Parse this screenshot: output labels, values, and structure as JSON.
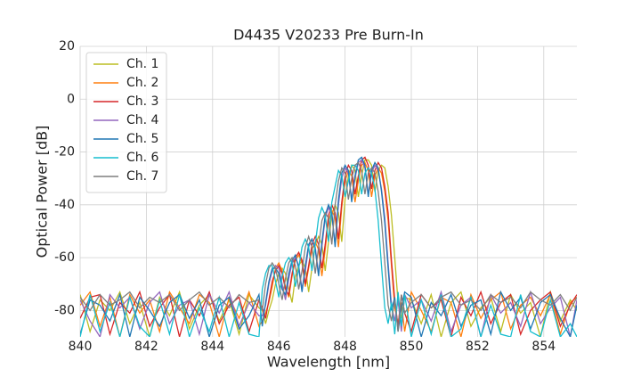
{
  "chart_data": {
    "type": "line",
    "title": "D4435 V20233 Pre Burn-In",
    "x_label": "Wavelength [nm]",
    "y_label": "Optical Power [dB]",
    "xlim": [
      840,
      855
    ],
    "ylim": [
      -90,
      20
    ],
    "xticks": [
      840,
      842,
      844,
      846,
      848,
      850,
      852,
      854
    ],
    "yticks": [
      20,
      0,
      -20,
      -40,
      -60,
      -80
    ],
    "grid": true,
    "legend": "upper-left",
    "x": [
      840,
      840.3,
      840.6,
      840.9,
      841.2,
      841.5,
      841.8,
      842.1,
      842.4,
      842.7,
      843,
      843.3,
      843.6,
      843.9,
      844.2,
      844.5,
      844.8,
      845.1,
      845.4,
      845.5,
      845.6,
      845.7,
      845.8,
      845.9,
      846,
      846.1,
      846.2,
      846.3,
      846.4,
      846.5,
      846.6,
      846.7,
      846.8,
      846.9,
      847,
      847.1,
      847.2,
      847.3,
      847.4,
      847.5,
      847.6,
      847.7,
      847.8,
      847.9,
      848,
      848.1,
      848.2,
      848.3,
      848.4,
      848.5,
      848.6,
      848.7,
      848.8,
      848.9,
      849,
      849.1,
      849.2,
      849.3,
      849.4,
      849.5,
      849.6,
      849.7,
      849.8,
      850,
      850.3,
      850.6,
      850.9,
      851.2,
      851.5,
      851.8,
      852.1,
      852.4,
      852.7,
      853,
      853.3,
      853.6,
      853.9,
      854.2,
      854.5,
      854.8,
      855
    ],
    "series": [
      {
        "name": "Ch. 1",
        "color": "#bcbd22",
        "values": [
          -74,
          -88,
          -76,
          -80,
          -73,
          -85,
          -77,
          -90,
          -75,
          -82,
          -73,
          -87,
          -78,
          -74,
          -84,
          -76,
          -89,
          -74,
          -79,
          -80,
          -85,
          -80,
          -76,
          -70,
          -66,
          -64,
          -66,
          -72,
          -77,
          -67,
          -63,
          -61,
          -64,
          -73,
          -64,
          -55,
          -52,
          -55,
          -65,
          -54,
          -44,
          -40,
          -43,
          -54,
          -38,
          -29,
          -25,
          -27,
          -37,
          -29,
          -23,
          -23,
          -25,
          -35,
          -27,
          -25,
          -26,
          -33,
          -44,
          -60,
          -77,
          -83,
          -75,
          -76,
          -85,
          -74,
          -90,
          -77,
          -73,
          -86,
          -79,
          -75,
          -88,
          -74,
          -81,
          -77,
          -90,
          -73,
          -84,
          -76,
          -80
        ]
      },
      {
        "name": "Ch. 2",
        "color": "#ff7f0e",
        "values": [
          -78,
          -73,
          -86,
          -75,
          -90,
          -74,
          -81,
          -76,
          -88,
          -73,
          -79,
          -85,
          -74,
          -77,
          -90,
          -75,
          -83,
          -73,
          -86,
          -84,
          -81,
          -77,
          -71,
          -64,
          -62,
          -65,
          -71,
          -75,
          -67,
          -61,
          -59,
          -62,
          -71,
          -64,
          -57,
          -54,
          -57,
          -67,
          -57,
          -46,
          -42,
          -45,
          -56,
          -41,
          -31,
          -27,
          -29,
          -39,
          -31,
          -25,
          -24,
          -27,
          -37,
          -29,
          -26,
          -28,
          -35,
          -46,
          -63,
          -79,
          -85,
          -77,
          -88,
          -73,
          -80,
          -88,
          -75,
          -77,
          -90,
          -74,
          -83,
          -76,
          -73,
          -87,
          -78,
          -75,
          -82,
          -74,
          -89,
          -77,
          -75
        ]
      },
      {
        "name": "Ch. 3",
        "color": "#d62728",
        "values": [
          -83,
          -75,
          -74,
          -89,
          -77,
          -81,
          -73,
          -86,
          -79,
          -74,
          -90,
          -76,
          -82,
          -73,
          -85,
          -78,
          -75,
          -88,
          -76,
          -79,
          -83,
          -76,
          -69,
          -65,
          -63,
          -66,
          -72,
          -74,
          -66,
          -60,
          -58,
          -61,
          -70,
          -63,
          -55,
          -52,
          -55,
          -64,
          -55,
          -44,
          -40,
          -43,
          -53,
          -39,
          -29,
          -25,
          -27,
          -36,
          -29,
          -23,
          -22,
          -25,
          -34,
          -27,
          -24,
          -26,
          -33,
          -43,
          -61,
          -76,
          -86,
          -74,
          -81,
          -88,
          -74,
          -79,
          -76,
          -90,
          -75,
          -82,
          -73,
          -85,
          -77,
          -74,
          -89,
          -80,
          -76,
          -73,
          -86,
          -78,
          -74
        ]
      },
      {
        "name": "Ch. 4",
        "color": "#9467bd",
        "values": [
          -76,
          -84,
          -90,
          -74,
          -79,
          -75,
          -87,
          -77,
          -73,
          -85,
          -78,
          -76,
          -89,
          -74,
          -81,
          -73,
          -86,
          -77,
          -82,
          -82,
          -78,
          -70,
          -65,
          -63,
          -64,
          -70,
          -76,
          -68,
          -62,
          -60,
          -63,
          -72,
          -65,
          -56,
          -53,
          -56,
          -66,
          -56,
          -45,
          -41,
          -44,
          -55,
          -40,
          -30,
          -26,
          -28,
          -38,
          -30,
          -24,
          -23,
          -26,
          -36,
          -28,
          -25,
          -27,
          -34,
          -45,
          -62,
          -78,
          -84,
          -76,
          -88,
          -74,
          -79,
          -76,
          -84,
          -73,
          -88,
          -78,
          -75,
          -90,
          -74,
          -81,
          -77,
          -86,
          -73,
          -85,
          -79,
          -75,
          -90,
          -76
        ]
      },
      {
        "name": "Ch. 5",
        "color": "#1f77b4",
        "values": [
          -89,
          -76,
          -78,
          -84,
          -74,
          -90,
          -75,
          -80,
          -86,
          -77,
          -74,
          -83,
          -76,
          -90,
          -78,
          -75,
          -87,
          -82,
          -74,
          -86,
          -77,
          -69,
          -64,
          -64,
          -66,
          -72,
          -74,
          -66,
          -61,
          -59,
          -64,
          -73,
          -63,
          -55,
          -53,
          -57,
          -67,
          -54,
          -44,
          -40,
          -43,
          -56,
          -38,
          -28,
          -25,
          -27,
          -39,
          -29,
          -23,
          -22,
          -25,
          -37,
          -27,
          -24,
          -26,
          -35,
          -47,
          -64,
          -80,
          -75,
          -88,
          -79,
          -73,
          -75,
          -90,
          -77,
          -82,
          -74,
          -86,
          -78,
          -76,
          -89,
          -73,
          -80,
          -75,
          -87,
          -77,
          -74,
          -83,
          -90,
          -78
        ]
      },
      {
        "name": "Ch. 6",
        "color": "#17becf",
        "values": [
          -90,
          -74,
          -88,
          -77,
          -90,
          -75,
          -86,
          -90,
          -76,
          -89,
          -74,
          -90,
          -79,
          -88,
          -75,
          -90,
          -77,
          -89,
          -90,
          -72,
          -66,
          -63,
          -63,
          -69,
          -75,
          -67,
          -62,
          -60,
          -62,
          -71,
          -64,
          -56,
          -53,
          -56,
          -65,
          -55,
          -45,
          -41,
          -44,
          -54,
          -39,
          -33,
          -27,
          -29,
          -37,
          -31,
          -25,
          -25,
          -27,
          -36,
          -28,
          -26,
          -28,
          -34,
          -46,
          -63,
          -79,
          -85,
          -77,
          -89,
          -73,
          -86,
          -74,
          -90,
          -76,
          -89,
          -74,
          -90,
          -87,
          -75,
          -90,
          -78,
          -89,
          -90,
          -74,
          -88,
          -90,
          -76,
          -90,
          -85,
          -90
        ]
      },
      {
        "name": "Ch. 7",
        "color": "#7f7f7f",
        "values": [
          -75,
          -80,
          -74,
          -78,
          -76,
          -73,
          -79,
          -75,
          -77,
          -74,
          -80,
          -76,
          -73,
          -78,
          -75,
          -79,
          -74,
          -77,
          -76,
          -80,
          -70,
          -64,
          -62,
          -64,
          -70,
          -76,
          -68,
          -62,
          -60,
          -63,
          -72,
          -65,
          -56,
          -52,
          -56,
          -66,
          -56,
          -46,
          -43,
          -45,
          -55,
          -40,
          -31,
          -26,
          -28,
          -38,
          -30,
          -25,
          -24,
          -27,
          -36,
          -28,
          -26,
          -28,
          -35,
          -46,
          -62,
          -78,
          -84,
          -76,
          -88,
          -74,
          -81,
          -77,
          -74,
          -79,
          -75,
          -73,
          -78,
          -76,
          -80,
          -74,
          -77,
          -75,
          -79,
          -73,
          -76,
          -78,
          -74,
          -80,
          -75
        ]
      }
    ]
  }
}
